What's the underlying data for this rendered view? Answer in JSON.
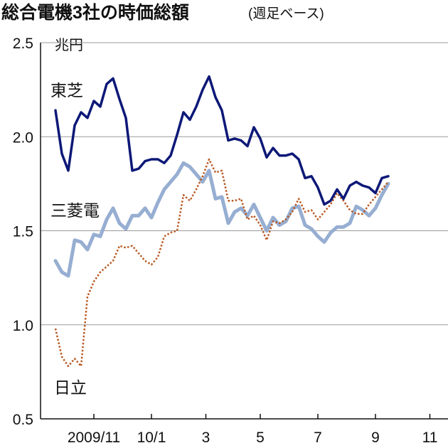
{
  "chart_data": {
    "type": "line",
    "title": "総合電機3社の時価総額",
    "subtitle": "(週足ベース)",
    "unit_label": "兆円",
    "ylim": [
      0.5,
      2.5
    ],
    "yticks": [
      {
        "value": 2.5,
        "label": "2.5"
      },
      {
        "value": 2.0,
        "label": "2.0"
      },
      {
        "value": 1.5,
        "label": "1.5"
      },
      {
        "value": 1.0,
        "label": "1.0"
      },
      {
        "value": 0.5,
        "label": "0.5"
      }
    ],
    "xlim": [
      0,
      55
    ],
    "xticks": [
      {
        "x": 6,
        "label": "2009/11"
      },
      {
        "x": 15,
        "label": "10/1"
      },
      {
        "x": 23.5,
        "label": "3"
      },
      {
        "x": 32,
        "label": "5"
      },
      {
        "x": 41,
        "label": "7"
      },
      {
        "x": 50,
        "label": "9"
      },
      {
        "x": 58.5,
        "label": "11"
      }
    ],
    "series": [
      {
        "name": "東芝",
        "color": "#0d1877",
        "style": "solid",
        "values": [
          2.14,
          1.91,
          1.82,
          2.06,
          2.13,
          2.1,
          2.19,
          2.16,
          2.28,
          2.31,
          2.2,
          2.1,
          1.82,
          1.83,
          1.87,
          1.88,
          1.88,
          1.86,
          1.9,
          2.01,
          2.13,
          2.09,
          2.16,
          2.25,
          2.32,
          2.21,
          2.14,
          1.98,
          1.99,
          1.98,
          1.95,
          2.05,
          1.99,
          1.89,
          1.94,
          1.9,
          1.9,
          1.91,
          1.88,
          1.78,
          1.79,
          1.73,
          1.64,
          1.66,
          1.72,
          1.67,
          1.74,
          1.76,
          1.74,
          1.73,
          1.7,
          1.78,
          1.79
        ]
      },
      {
        "name": "三菱電",
        "color": "#97aed2",
        "style": "thick",
        "values": [
          1.34,
          1.28,
          1.26,
          1.45,
          1.44,
          1.4,
          1.48,
          1.47,
          1.56,
          1.62,
          1.54,
          1.51,
          1.58,
          1.58,
          1.62,
          1.57,
          1.65,
          1.72,
          1.76,
          1.8,
          1.86,
          1.84,
          1.8,
          1.76,
          1.82,
          1.67,
          1.68,
          1.54,
          1.6,
          1.62,
          1.58,
          1.64,
          1.57,
          1.5,
          1.57,
          1.53,
          1.55,
          1.62,
          1.63,
          1.53,
          1.51,
          1.47,
          1.44,
          1.49,
          1.52,
          1.52,
          1.54,
          1.63,
          1.61,
          1.58,
          1.62,
          1.69,
          1.75
        ]
      },
      {
        "name": "日立",
        "color": "#b85a24",
        "style": "dotted",
        "values": [
          0.98,
          0.83,
          0.78,
          0.82,
          0.78,
          1.15,
          1.23,
          1.28,
          1.31,
          1.34,
          1.42,
          1.41,
          1.42,
          1.38,
          1.34,
          1.32,
          1.36,
          1.47,
          1.49,
          1.5,
          1.69,
          1.66,
          1.72,
          1.79,
          1.88,
          1.81,
          1.82,
          1.66,
          1.66,
          1.67,
          1.56,
          1.58,
          1.53,
          1.45,
          1.55,
          1.54,
          1.56,
          1.6,
          1.67,
          1.6,
          1.61,
          1.56,
          1.6,
          1.64,
          1.7,
          1.66,
          1.61,
          1.59,
          1.59,
          1.64,
          1.68,
          1.72,
          1.76
        ]
      }
    ]
  }
}
